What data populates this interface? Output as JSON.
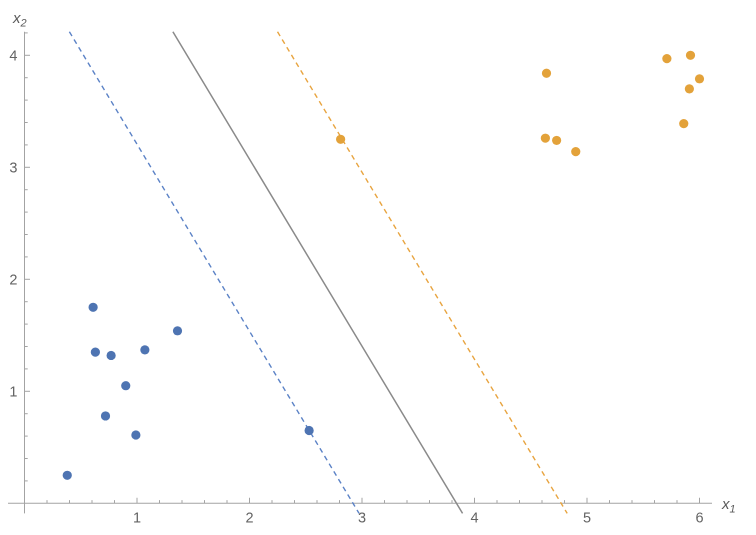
{
  "figure": {
    "xlabel": {
      "base": "x",
      "sub": "1"
    },
    "ylabel": {
      "base": "x",
      "sub": "2"
    }
  },
  "colors": {
    "negative_points": "#4e74b2",
    "positive_points": "#e3a23a",
    "negative_margin_line": "#5b82c6",
    "positive_margin_line": "#e8a43f",
    "decision_line": "#8a8a8a",
    "axis": "#a3a3a3",
    "tick_label": "#636363",
    "axis_label": "#5a5a5a",
    "background": "#ffffff"
  },
  "chart_data": {
    "type": "scatter",
    "title": "",
    "xlabel": "x1",
    "ylabel": "x2",
    "xlim": [
      -0.15,
      6.11
    ],
    "ylim": [
      -0.09,
      4.21
    ],
    "grid": false,
    "legend": null,
    "x_tick_labels": [
      "1",
      "2",
      "3",
      "4",
      "5",
      "6"
    ],
    "x_tick_values": [
      1,
      2,
      3,
      4,
      5,
      6
    ],
    "y_tick_labels": [
      "1",
      "2",
      "3",
      "4"
    ],
    "y_tick_values": [
      1,
      2,
      3,
      4
    ],
    "minor_tick_step": 0.2,
    "series": [
      {
        "name": "negative-class",
        "marker": "circle",
        "color_key": "negative_points",
        "points": [
          [
            0.38,
            0.25
          ],
          [
            0.61,
            1.75
          ],
          [
            0.63,
            1.35
          ],
          [
            0.72,
            0.78
          ],
          [
            0.77,
            1.32
          ],
          [
            0.9,
            1.05
          ],
          [
            0.99,
            0.61
          ],
          [
            1.07,
            1.37
          ],
          [
            1.36,
            1.54
          ],
          [
            2.53,
            0.65
          ]
        ]
      },
      {
        "name": "positive-class",
        "marker": "circle",
        "color_key": "positive_points",
        "points": [
          [
            2.81,
            3.25
          ],
          [
            4.63,
            3.26
          ],
          [
            4.64,
            3.84
          ],
          [
            4.73,
            3.24
          ],
          [
            4.9,
            3.14
          ],
          [
            5.71,
            3.97
          ],
          [
            5.86,
            3.39
          ],
          [
            5.91,
            3.7
          ],
          [
            5.92,
            4.0
          ],
          [
            6.0,
            3.79
          ]
        ]
      }
    ],
    "lines": [
      {
        "name": "negative-margin-line",
        "style": "dashed",
        "color_key": "negative_margin_line",
        "slope": -1.67,
        "x_intercept": 2.92
      },
      {
        "name": "decision-boundary-line",
        "style": "solid",
        "color_key": "decision_line",
        "slope": -1.67,
        "x_intercept": 3.84
      },
      {
        "name": "positive-margin-line",
        "style": "dashed",
        "color_key": "positive_margin_line",
        "slope": -1.67,
        "x_intercept": 4.77
      }
    ]
  }
}
